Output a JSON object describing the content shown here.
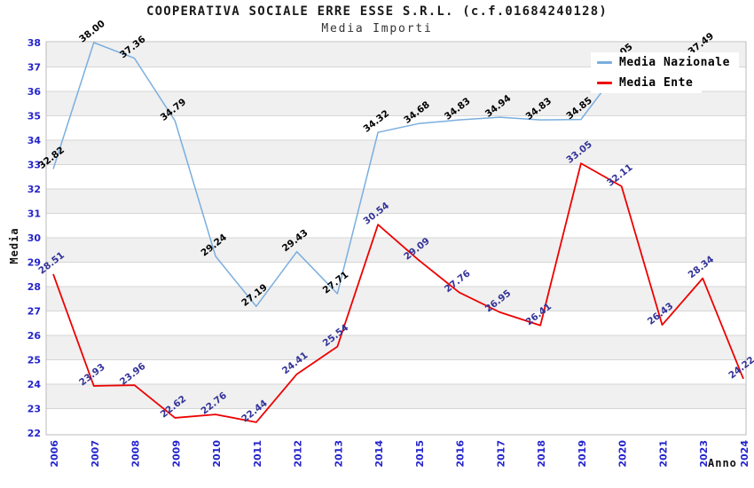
{
  "header": {
    "title": "COOPERATIVA SOCIALE ERRE ESSE S.R.L. (c.f.01684240128)",
    "subtitle": "Media Importi"
  },
  "axes": {
    "ylabel": "Media",
    "xlabel": "Anno"
  },
  "legend": {
    "position": "top-right",
    "items": [
      {
        "label": "Media Nazionale"
      },
      {
        "label": "Media Ente"
      }
    ]
  },
  "colors": {
    "nazionale_line": "#7aaede",
    "ente_line": "#ee0000",
    "axis_tick_label": "#2424cc",
    "nazionale_value_label": "#000000",
    "ente_value_label": "#333399",
    "band_gray": "#f0f0f0",
    "band_white": "#ffffff",
    "grid_line": "#d6d6d6",
    "plot_border": "#bbbbbb"
  },
  "chart_data": {
    "type": "line",
    "title": "Media Importi",
    "xlabel": "Anno",
    "ylabel": "Media",
    "categories": [
      "2006",
      "2007",
      "2008",
      "2009",
      "2010",
      "2011",
      "2012",
      "2013",
      "2014",
      "2015",
      "2016",
      "2017",
      "2018",
      "2019",
      "2020",
      "2021",
      "2023",
      "2024"
    ],
    "series": [
      {
        "name": "Media Nazionale",
        "color": "#7aaede",
        "label_color": "#000000",
        "values": [
          32.82,
          38.0,
          37.36,
          34.79,
          29.24,
          27.19,
          29.43,
          27.71,
          34.32,
          34.68,
          34.83,
          34.94,
          34.83,
          34.85,
          37.05,
          null,
          37.49,
          null
        ]
      },
      {
        "name": "Media Ente",
        "color": "#ee0000",
        "label_color": "#333399",
        "values": [
          28.51,
          23.93,
          23.96,
          22.62,
          22.76,
          22.44,
          24.41,
          25.54,
          30.54,
          29.09,
          27.76,
          26.95,
          26.41,
          33.05,
          32.11,
          26.43,
          28.34,
          24.22
        ]
      }
    ],
    "ylim": [
      22,
      38
    ],
    "ytick_step": 1,
    "grid": "horizontal alternating gray/white unit bands",
    "legend_position": "top-right",
    "value_labels": "each point labeled with value rotated ~38deg"
  }
}
